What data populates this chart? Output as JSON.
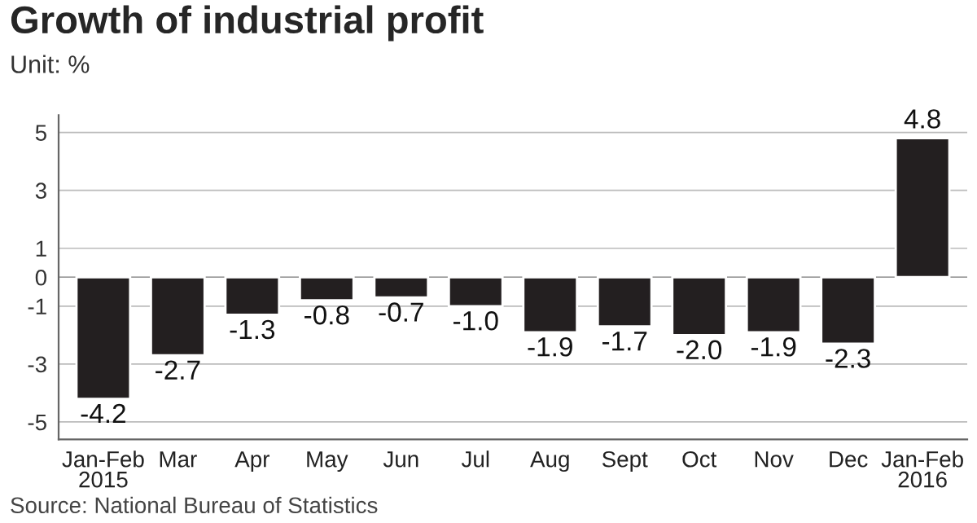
{
  "chart_data": {
    "type": "bar",
    "title": "Growth of industrial profit",
    "subtitle": "Unit: %",
    "categories": [
      "Jan-Feb\n2015",
      "Mar",
      "Apr",
      "May",
      "Jun",
      "Jul",
      "Aug",
      "Sept",
      "Oct",
      "Nov",
      "Dec",
      "Jan-Feb\n2016"
    ],
    "values": [
      -4.2,
      -2.7,
      -1.3,
      -0.8,
      -0.7,
      -1.0,
      -1.9,
      -1.7,
      -2.0,
      -1.9,
      -2.3,
      4.8
    ],
    "color": "#231f20",
    "value_labels": [
      "-4.2",
      "-2.7",
      "-1.3",
      "-0.8",
      "-0.7",
      "-1.0",
      "-1.9",
      "-1.7",
      "-2.0",
      "-1.9",
      "-2.3",
      "4.8"
    ],
    "ylim": [
      -5.6,
      5.6
    ],
    "yticks": [
      -5,
      -3,
      -1,
      0,
      1,
      3,
      5
    ],
    "grid": "y",
    "annotations": [
      "Source: National Bureau of Statistics"
    ]
  }
}
